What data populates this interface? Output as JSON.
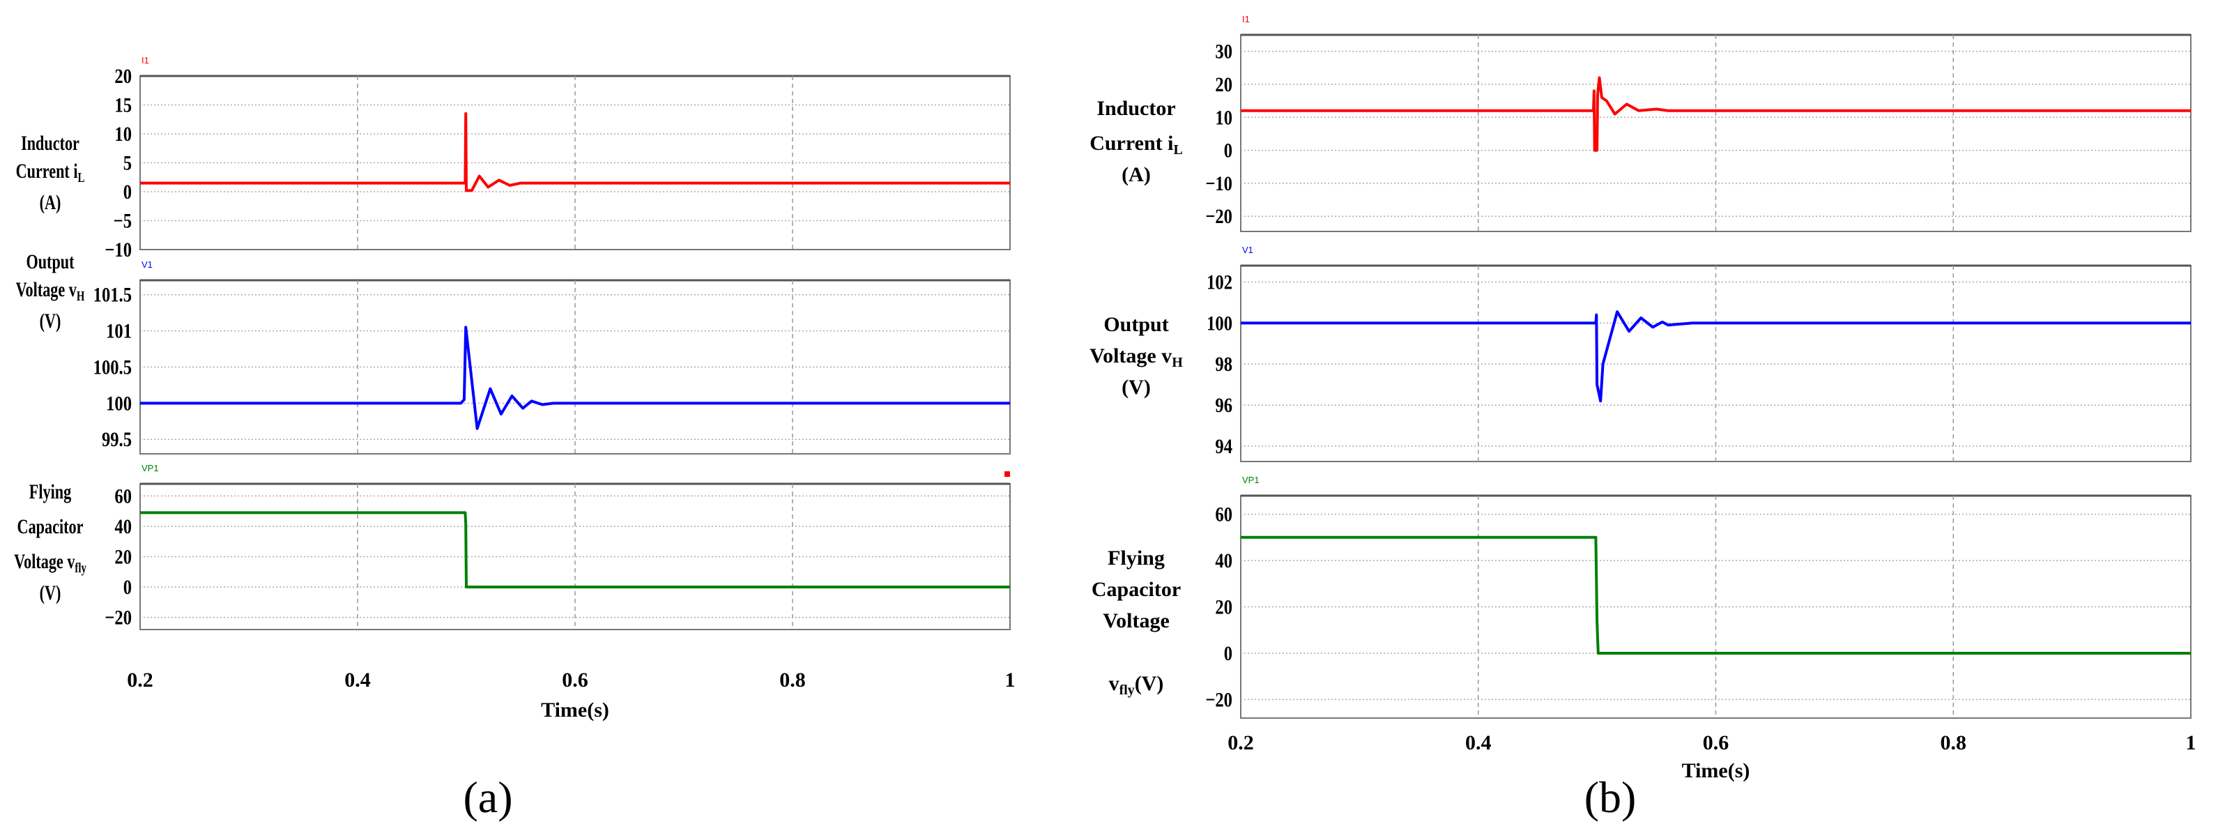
{
  "chart_data": [
    {
      "panel_label": "(a)",
      "xlabel": "Time(s)",
      "xlim": [
        0.2,
        1.0
      ],
      "xticks": [
        "0.2",
        "0.4",
        "0.6",
        "0.8",
        "1"
      ],
      "xtick_values": [
        0.2,
        0.4,
        0.6,
        0.8,
        1.0
      ],
      "grid": true,
      "subplots": [
        {
          "type": "line",
          "legend": "I1",
          "color": "#ff0000",
          "ylabel": [
            "Inductor",
            "Current i",
            "L",
            "(A)"
          ],
          "ylim": [
            -10,
            20
          ],
          "yticks": [
            -10,
            -5,
            0,
            5,
            10,
            15,
            20
          ],
          "points": [
            [
              0.2,
              1.5
            ],
            [
              0.499,
              1.5
            ],
            [
              0.4995,
              13.5
            ],
            [
              0.5,
              0.2
            ],
            [
              0.505,
              0.2
            ],
            [
              0.512,
              2.7
            ],
            [
              0.52,
              0.8
            ],
            [
              0.53,
              2
            ],
            [
              0.54,
              1.1
            ],
            [
              0.55,
              1.5
            ],
            [
              1.0,
              1.5
            ]
          ]
        },
        {
          "type": "line",
          "legend": "V1",
          "color": "#0000ff",
          "ylabel": [
            "Output",
            "Voltage v",
            "H",
            "(V)"
          ],
          "ylim": [
            99.3,
            101.7
          ],
          "yticks": [
            99.5,
            100,
            100.5,
            101,
            101.5
          ],
          "points": [
            [
              0.2,
              100
            ],
            [
              0.495,
              100
            ],
            [
              0.498,
              100.05
            ],
            [
              0.4995,
              101.05
            ],
            [
              0.51,
              99.65
            ],
            [
              0.522,
              100.2
            ],
            [
              0.532,
              99.85
            ],
            [
              0.542,
              100.1
            ],
            [
              0.552,
              99.93
            ],
            [
              0.56,
              100.03
            ],
            [
              0.57,
              99.98
            ],
            [
              0.58,
              100
            ],
            [
              1.0,
              100
            ]
          ]
        },
        {
          "type": "line",
          "legend": "VP1",
          "color": "#008000",
          "ylabel": [
            "Flying",
            "Capacitor",
            "Voltage v",
            "fly",
            "(V)"
          ],
          "ylim": [
            -28,
            68
          ],
          "yticks": [
            -20,
            0,
            20,
            40,
            60
          ],
          "points": [
            [
              0.2,
              49
            ],
            [
              0.499,
              49
            ],
            [
              0.4995,
              42
            ],
            [
              0.5,
              0
            ],
            [
              1.0,
              0
            ]
          ]
        }
      ]
    },
    {
      "panel_label": "(b)",
      "xlabel": "Time(s)",
      "xlim": [
        0.2,
        1.0
      ],
      "xticks": [
        "0.2",
        "0.4",
        "0.6",
        "0.8",
        "1"
      ],
      "xtick_values": [
        0.2,
        0.4,
        0.6,
        0.8,
        1.0
      ],
      "grid": true,
      "subplots": [
        {
          "type": "line",
          "legend": "I1",
          "color": "#ff0000",
          "ylabel": [
            "Inductor",
            "Current i",
            "L",
            "(A)"
          ],
          "ylim": [
            -24.6,
            35
          ],
          "yticks": [
            -20,
            -10,
            0,
            10,
            20,
            30
          ],
          "points": [
            [
              0.2,
              12
            ],
            [
              0.497,
              12
            ],
            [
              0.4975,
              18
            ],
            [
              0.498,
              0
            ],
            [
              0.5,
              0
            ],
            [
              0.5005,
              17
            ],
            [
              0.502,
              22
            ],
            [
              0.504,
              16
            ],
            [
              0.508,
              15
            ],
            [
              0.515,
              11
            ],
            [
              0.525,
              14
            ],
            [
              0.535,
              12
            ],
            [
              0.55,
              12.5
            ],
            [
              0.56,
              12
            ],
            [
              1.0,
              12
            ]
          ]
        },
        {
          "type": "line",
          "legend": "V1",
          "color": "#0000ff",
          "ylabel": [
            "Output",
            "Voltage v",
            "H",
            "(V)"
          ],
          "ylim": [
            93.25,
            102.8
          ],
          "yticks": [
            94,
            96,
            98,
            100,
            102
          ],
          "points": [
            [
              0.2,
              100
            ],
            [
              0.499,
              100
            ],
            [
              0.4995,
              100.4
            ],
            [
              0.5,
              97
            ],
            [
              0.503,
              96.2
            ],
            [
              0.505,
              98
            ],
            [
              0.517,
              100.55
            ],
            [
              0.527,
              99.6
            ],
            [
              0.537,
              100.25
            ],
            [
              0.547,
              99.8
            ],
            [
              0.555,
              100.05
            ],
            [
              0.56,
              99.9
            ],
            [
              0.58,
              100
            ],
            [
              1.0,
              100
            ]
          ]
        },
        {
          "type": "line",
          "legend": "VP1",
          "color": "#008000",
          "ylabel": [
            "Flying",
            "Capacitor",
            "Voltage",
            "v",
            "fly",
            "(V)"
          ],
          "ylim": [
            -28,
            68
          ],
          "yticks": [
            -20,
            0,
            20,
            40,
            60
          ],
          "points": [
            [
              0.2,
              50
            ],
            [
              0.499,
              50
            ],
            [
              0.5,
              14
            ],
            [
              0.501,
              0
            ],
            [
              1.0,
              0
            ]
          ]
        }
      ]
    }
  ]
}
